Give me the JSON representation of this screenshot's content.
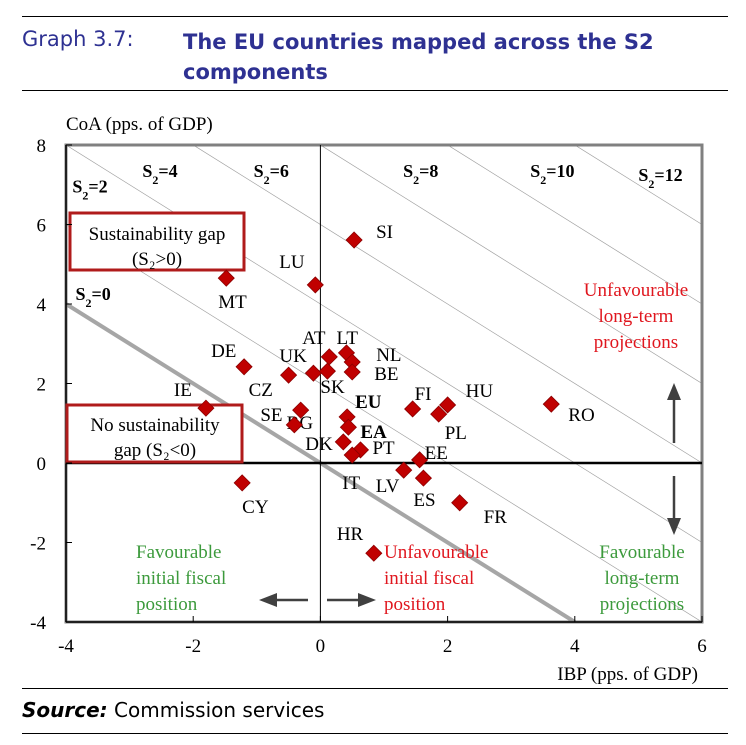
{
  "header": {
    "label": "Graph 3.7:",
    "title": "The EU countries mapped across the S2 components"
  },
  "source": {
    "label": "Source:",
    "text": "Commission services"
  },
  "colors": {
    "title": "#2e3192",
    "marker": "#c00000",
    "unfavourable": "#e0161e",
    "favourable": "#3c9a3c",
    "box": "#b01b1b"
  },
  "chart_data": {
    "type": "scatter",
    "title": "The EU countries mapped across the S2 components",
    "xlabel": "IBP (pps. of GDP)",
    "ylabel": "CoA (pps. of GDP)",
    "xlim": [
      -4,
      6
    ],
    "ylim": [
      -4,
      8
    ],
    "xticks": [
      -4,
      -2,
      0,
      2,
      4,
      6
    ],
    "yticks": [
      -4,
      -2,
      0,
      2,
      4,
      6,
      8
    ],
    "grid": false,
    "iso_lines": {
      "description": "S2 = IBP + CoA",
      "values": [
        2,
        4,
        6,
        8,
        10,
        12,
        14
      ],
      "labels": [
        {
          "text": "S",
          "sub": "2",
          "rest": "=2",
          "x": -3.9,
          "y": 6.8
        },
        {
          "text": "S",
          "sub": "2",
          "rest": "=4",
          "x": -2.8,
          "y": 7.2
        },
        {
          "text": "S",
          "sub": "2",
          "rest": "=6",
          "x": -1.05,
          "y": 7.2
        },
        {
          "text": "S",
          "sub": "2",
          "rest": "=8",
          "x": 1.3,
          "y": 7.2
        },
        {
          "text": "S",
          "sub": "2",
          "rest": "=10",
          "x": 3.3,
          "y": 7.2
        },
        {
          "text": "S",
          "sub": "2",
          "rest": "=12",
          "x": 5.0,
          "y": 7.1
        },
        {
          "text": "S",
          "sub": "2",
          "rest": "=0",
          "x": -3.85,
          "y": 4.1
        }
      ]
    },
    "zero_line": {
      "value": 0,
      "label_index": 6
    },
    "points": [
      {
        "label": "SI",
        "x": 0.53,
        "y": 5.61,
        "bold": false
      },
      {
        "label": "MT",
        "x": -1.48,
        "y": 4.65,
        "bold": false
      },
      {
        "label": "LU",
        "x": -0.08,
        "y": 4.48,
        "bold": false
      },
      {
        "label": "DE",
        "x": -1.2,
        "y": 2.42,
        "bold": false
      },
      {
        "label": "CZ",
        "x": -0.5,
        "y": 2.21,
        "bold": false
      },
      {
        "label": "UK",
        "x": -0.11,
        "y": 2.26,
        "bold": false
      },
      {
        "label": "AT",
        "x": 0.14,
        "y": 2.67,
        "bold": false
      },
      {
        "label": "SK",
        "x": 0.11,
        "y": 2.31,
        "bold": false
      },
      {
        "label": "LT",
        "x": 0.41,
        "y": 2.77,
        "bold": false
      },
      {
        "label": "NL",
        "x": 0.5,
        "y": 2.54,
        "bold": false
      },
      {
        "label": "BE",
        "x": 0.5,
        "y": 2.29,
        "bold": false
      },
      {
        "label": "IE",
        "x": -1.8,
        "y": 1.38,
        "bold": false
      },
      {
        "label": "BG",
        "x": -0.31,
        "y": 1.33,
        "bold": false
      },
      {
        "label": "SE",
        "x": -0.41,
        "y": 0.96,
        "bold": false
      },
      {
        "label": "EU",
        "x": 0.42,
        "y": 1.16,
        "bold": true
      },
      {
        "label": "EA",
        "x": 0.44,
        "y": 0.9,
        "bold": true
      },
      {
        "label": "DK",
        "x": 0.36,
        "y": 0.53,
        "bold": false
      },
      {
        "label": "PT",
        "x": 0.63,
        "y": 0.33,
        "bold": false
      },
      {
        "label": "IT",
        "x": 0.5,
        "y": 0.2,
        "bold": false
      },
      {
        "label": "FI",
        "x": 1.45,
        "y": 1.36,
        "bold": false
      },
      {
        "label": "PL",
        "x": 1.86,
        "y": 1.23,
        "bold": false
      },
      {
        "label": "HU",
        "x": 2.0,
        "y": 1.46,
        "bold": false
      },
      {
        "label": "RO",
        "x": 3.63,
        "y": 1.48,
        "bold": false
      },
      {
        "label": "EE",
        "x": 1.56,
        "y": 0.08,
        "bold": false
      },
      {
        "label": "LV",
        "x": 1.31,
        "y": -0.18,
        "bold": false
      },
      {
        "label": "ES",
        "x": 1.62,
        "y": -0.38,
        "bold": false
      },
      {
        "label": "FR",
        "x": 2.19,
        "y": -1.0,
        "bold": false
      },
      {
        "label": "CY",
        "x": -1.23,
        "y": -0.5,
        "bold": false
      },
      {
        "label": "HR",
        "x": 0.84,
        "y": -2.27,
        "bold": false
      }
    ],
    "annotations": {
      "sustainability_gap": [
        "Sustainability gap",
        "(S₂>0)"
      ],
      "no_sustainability_gap": [
        "No sustainability",
        "gap (S₂<0)"
      ],
      "unfavourable_long_term": [
        "Unfavourable",
        "long-term",
        "projections"
      ],
      "favourable_long_term": [
        "Favourable",
        "long-term",
        "projections"
      ],
      "favourable_initial": [
        "Favourable",
        "initial fiscal",
        "position"
      ],
      "unfavourable_initial": [
        "Unfavourable",
        "initial fiscal",
        "position"
      ]
    }
  }
}
